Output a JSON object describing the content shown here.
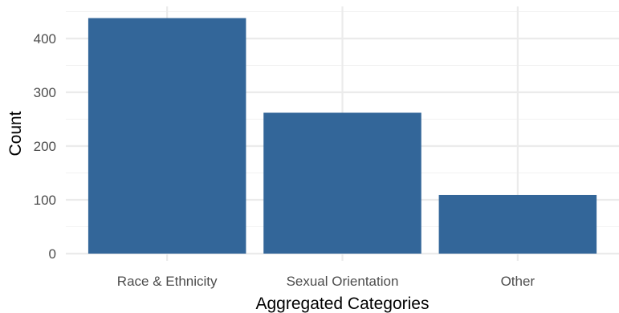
{
  "chart_data": {
    "type": "bar",
    "title": "",
    "xlabel": "Aggregated Categories",
    "ylabel": "Count",
    "categories": [
      "Race & Ethnicity",
      "Sexual Orientation",
      "Other"
    ],
    "values": [
      438,
      262,
      109
    ],
    "ylim": [
      0,
      450
    ],
    "yticks": [
      0,
      100,
      200,
      300,
      400
    ],
    "grid": true,
    "legend": "none",
    "bar_color": "#336699",
    "grid_color": "#ebebeb"
  }
}
